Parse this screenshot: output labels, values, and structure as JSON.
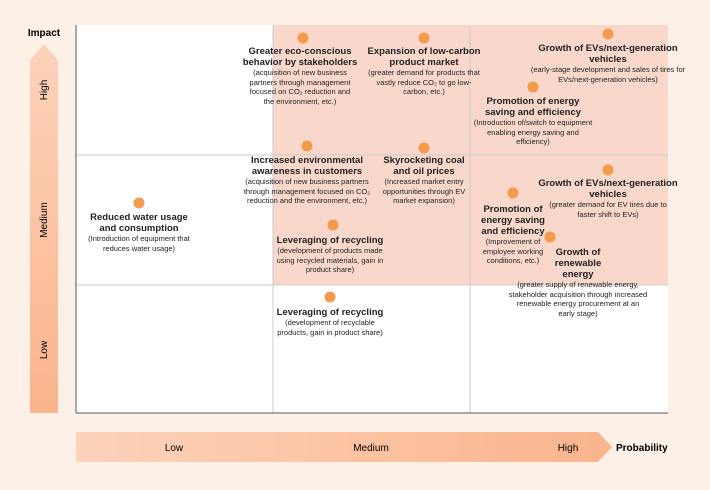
{
  "axes": {
    "y_title": "Impact",
    "x_title": "Probability",
    "y_levels": [
      "High",
      "Medium",
      "Low"
    ],
    "x_levels": [
      "Low",
      "Medium",
      "High"
    ]
  },
  "items": [
    {
      "title": "Greater eco-conscious behavior by stakeholders",
      "description": "(acquisition of new business partners through management focused on CO₂ reduction and the environment, etc.)"
    },
    {
      "title": "Expansion of low-carbon product market",
      "description": "(greater demand for products that vastly reduce CO₂ to go low-carbon, etc.)"
    },
    {
      "title": "Growth of EVs/next-generation vehicles",
      "description": "(early-stage development and sales of tires for EVs/next-generation vehicles)"
    },
    {
      "title": "Promotion of energy saving and efficiency",
      "description": "(Introduction of/switch to equipment enabling energy saving and efficiency)"
    },
    {
      "title": "Increased environmental awareness in customers",
      "description": "(acquisition of new business partners through management focused on CO₂ reduction and the environment, etc.)"
    },
    {
      "title": "Skyrocketing coal and oil prices",
      "description": "(Increased market entry opportunities through EV market expansion)"
    },
    {
      "title": "Reduced water usage and consumption",
      "description": "(Introduction of equipment that reduces water usage)"
    },
    {
      "title": "Growth of EVs/next-generation vehicles",
      "description": "(greater demand for EV tires due to faster shift to EVs)"
    },
    {
      "title": "Promotion of energy saving and efficiency",
      "description": "(Improvement of employee working conditions, etc.)"
    },
    {
      "title": "Leveraging of recycling",
      "description": "(development of products made using recycled materials, gain in product share)"
    },
    {
      "title": "Growth of renewable energy",
      "description": "(greater supply of renewable energy, stakeholder acquisition through increased renewable energy procurement at an early stage)"
    },
    {
      "title": "Leveraging of recycling",
      "description": "(development of recyclable products, gain in product share)"
    }
  ]
}
